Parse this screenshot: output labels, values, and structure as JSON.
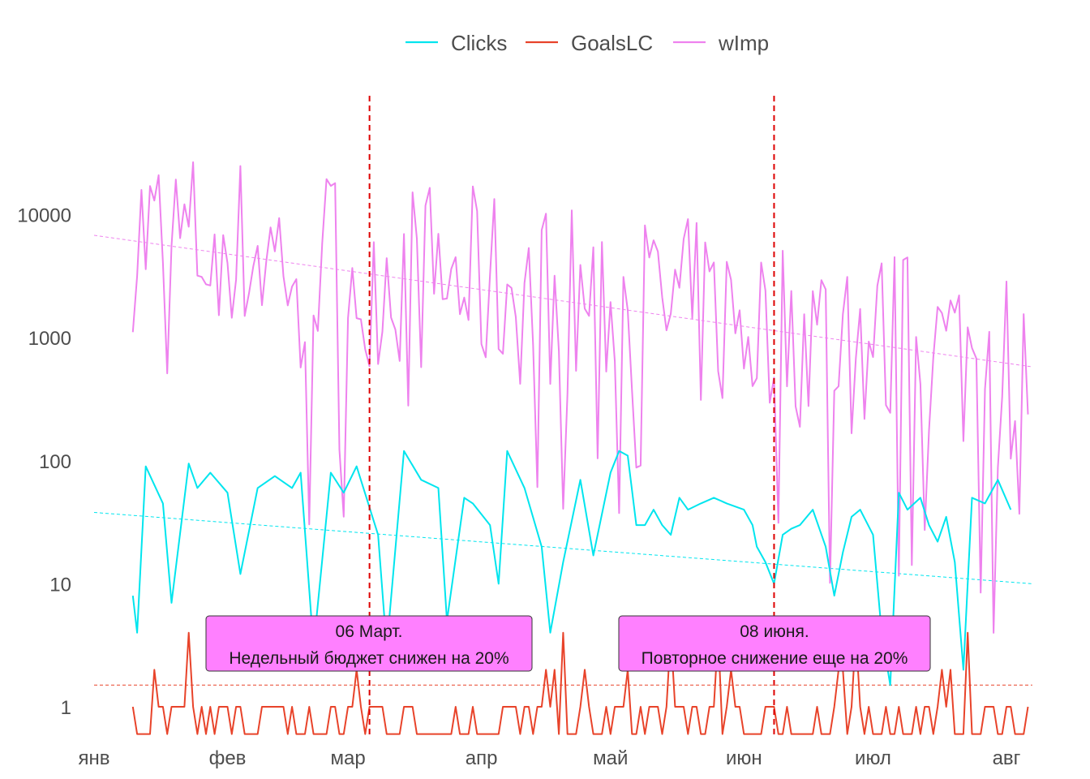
{
  "chart_data": {
    "type": "line",
    "y_scale": "log10",
    "ylim": [
      0.55,
      100000
    ],
    "y_ticks": [
      1,
      10,
      100,
      1000,
      10000
    ],
    "y_tick_labels": [
      "1",
      "10",
      "100",
      "1000",
      "10000"
    ],
    "x_range": [
      "2021-01-01",
      "2021-08-07"
    ],
    "x_ticks": [
      "2021-01-01",
      "2021-02-01",
      "2021-03-01",
      "2021-04-01",
      "2021-05-01",
      "2021-06-01",
      "2021-07-01",
      "2021-08-01"
    ],
    "x_tick_labels": [
      "янв",
      "фев",
      "мар",
      "апр",
      "май",
      "июн",
      "июл",
      "авг"
    ],
    "grid": false,
    "legend_position": "top",
    "series": [
      {
        "name": "Clicks",
        "color": "#00e5ee",
        "values": [
          [
            "2021-01-10",
            8
          ],
          [
            "2021-01-11",
            4
          ],
          [
            "2021-01-13",
            90
          ],
          [
            "2021-01-17",
            45
          ],
          [
            "2021-01-19",
            7
          ],
          [
            "2021-01-23",
            95
          ],
          [
            "2021-01-25",
            60
          ],
          [
            "2021-01-28",
            80
          ],
          [
            "2021-02-01",
            55
          ],
          [
            "2021-02-04",
            12
          ],
          [
            "2021-02-08",
            60
          ],
          [
            "2021-02-12",
            75
          ],
          [
            "2021-02-16",
            60
          ],
          [
            "2021-02-18",
            80
          ],
          [
            "2021-02-21",
            3
          ],
          [
            "2021-02-25",
            80
          ],
          [
            "2021-02-28",
            55
          ],
          [
            "2021-03-03",
            90
          ],
          [
            "2021-03-08",
            25
          ],
          [
            "2021-03-10",
            3
          ],
          [
            "2021-03-14",
            120
          ],
          [
            "2021-03-18",
            70
          ],
          [
            "2021-03-22",
            60
          ],
          [
            "2021-03-24",
            5
          ],
          [
            "2021-03-28",
            50
          ],
          [
            "2021-03-30",
            45
          ],
          [
            "2021-04-03",
            30
          ],
          [
            "2021-04-05",
            10
          ],
          [
            "2021-04-07",
            120
          ],
          [
            "2021-04-11",
            60
          ],
          [
            "2021-04-15",
            20
          ],
          [
            "2021-04-17",
            4
          ],
          [
            "2021-04-20",
            15
          ],
          [
            "2021-04-24",
            70
          ],
          [
            "2021-04-27",
            17
          ],
          [
            "2021-05-01",
            80
          ],
          [
            "2021-05-03",
            120
          ],
          [
            "2021-05-05",
            110
          ],
          [
            "2021-05-07",
            30
          ],
          [
            "2021-05-09",
            30
          ],
          [
            "2021-05-11",
            40
          ],
          [
            "2021-05-13",
            30
          ],
          [
            "2021-05-15",
            25
          ],
          [
            "2021-05-17",
            50
          ],
          [
            "2021-05-19",
            40
          ],
          [
            "2021-05-22",
            45
          ],
          [
            "2021-05-25",
            50
          ],
          [
            "2021-05-28",
            45
          ],
          [
            "2021-06-01",
            40
          ],
          [
            "2021-06-03",
            30
          ],
          [
            "2021-06-04",
            20
          ],
          [
            "2021-06-06",
            15
          ],
          [
            "2021-06-08",
            10
          ],
          [
            "2021-06-10",
            25
          ],
          [
            "2021-06-12",
            28
          ],
          [
            "2021-06-14",
            30
          ],
          [
            "2021-06-17",
            40
          ],
          [
            "2021-06-20",
            20
          ],
          [
            "2021-06-22",
            8
          ],
          [
            "2021-06-24",
            18
          ],
          [
            "2021-06-26",
            35
          ],
          [
            "2021-06-28",
            40
          ],
          [
            "2021-07-01",
            25
          ],
          [
            "2021-07-03",
            4
          ],
          [
            "2021-07-05",
            1.5
          ],
          [
            "2021-07-07",
            55
          ],
          [
            "2021-07-09",
            40
          ],
          [
            "2021-07-12",
            50
          ],
          [
            "2021-07-14",
            30
          ],
          [
            "2021-07-16",
            22
          ],
          [
            "2021-07-18",
            35
          ],
          [
            "2021-07-20",
            15
          ],
          [
            "2021-07-22",
            2
          ],
          [
            "2021-07-24",
            50
          ],
          [
            "2021-07-27",
            45
          ],
          [
            "2021-07-30",
            70
          ],
          [
            "2021-08-02",
            40
          ]
        ]
      },
      {
        "name": "GoalsLC",
        "color": "#e8432a",
        "values": []
      },
      {
        "name": "wImp",
        "color": "#ee82ee",
        "values": []
      }
    ],
    "trend_lines": [
      {
        "series": "wImp",
        "from": [
          "2021-01-01",
          6800
        ],
        "to": [
          "2021-08-07",
          580
        ]
      },
      {
        "series": "Clicks",
        "from": [
          "2021-01-01",
          38
        ],
        "to": [
          "2021-08-07",
          10
        ]
      },
      {
        "series": "GoalsLC",
        "from": [
          "2021-01-01",
          1.5
        ],
        "to": [
          "2021-08-07",
          1.5
        ]
      }
    ],
    "vlines": [
      {
        "date": "2021-03-06",
        "color": "#dd0000"
      },
      {
        "date": "2021-06-08",
        "color": "#dd0000"
      }
    ],
    "annotations": [
      {
        "line1": "06 Март.",
        "line2": "Недельный бюджет снижен на 20%",
        "fill": "#ff80ff"
      },
      {
        "line1": "08 июня.",
        "line2": "Повторное снижение еще на 20%",
        "fill": "#ff80ff"
      }
    ]
  }
}
